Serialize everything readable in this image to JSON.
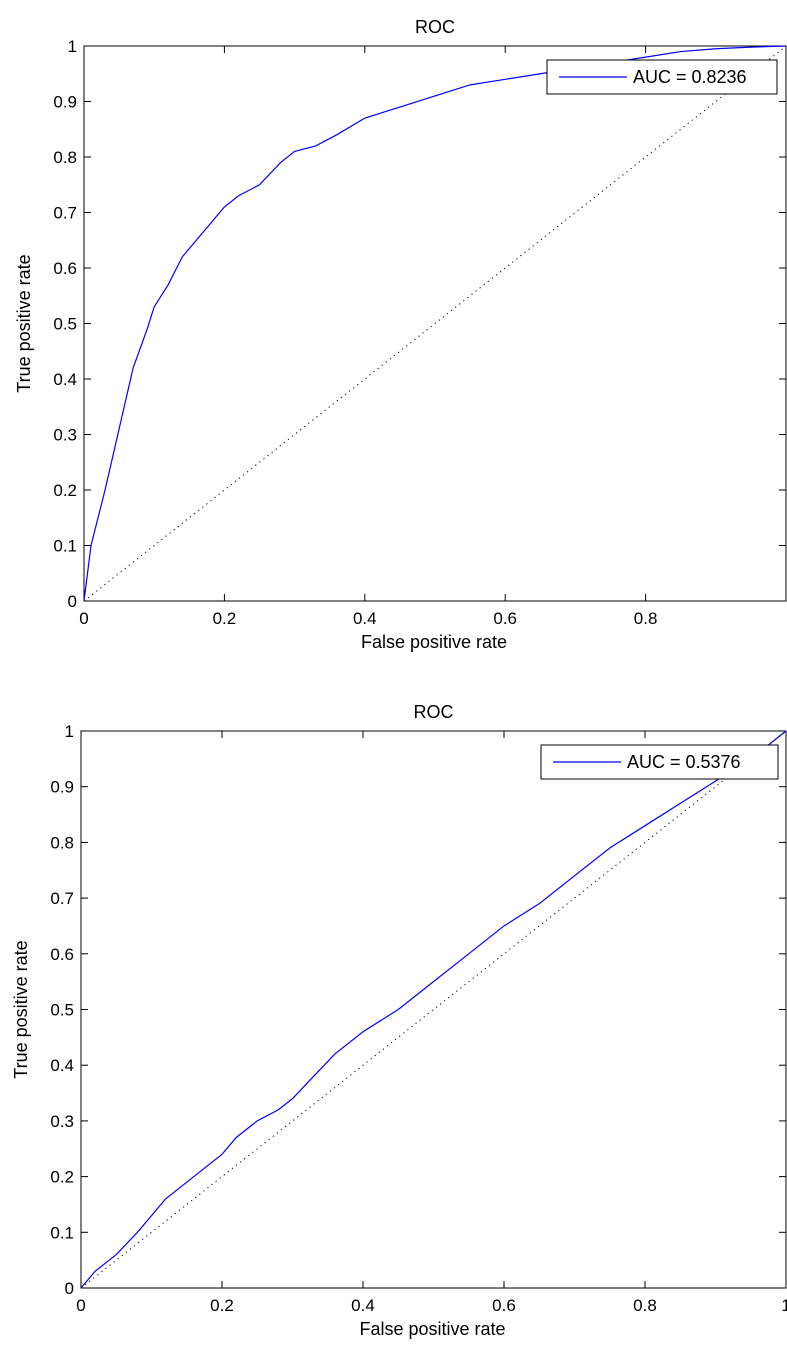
{
  "chart_data": [
    {
      "type": "line",
      "title": "ROC",
      "xlabel": "False positive rate",
      "ylabel": "True positive rate",
      "xlim": [
        0,
        1
      ],
      "ylim": [
        0,
        1
      ],
      "xticks": [
        "0",
        "0.2",
        "0.4",
        "0.6",
        "0.8"
      ],
      "yticks": [
        "0",
        "0.1",
        "0.2",
        "0.3",
        "0.4",
        "0.5",
        "0.6",
        "0.7",
        "0.8",
        "0.9",
        "1"
      ],
      "grid": false,
      "legend_position": "top-right",
      "series": [
        {
          "name": "AUC = 0.8236",
          "color": "#0000ff",
          "style": "solid",
          "x": [
            0,
            0.01,
            0.03,
            0.05,
            0.07,
            0.09,
            0.1,
            0.12,
            0.14,
            0.16,
            0.18,
            0.2,
            0.22,
            0.25,
            0.28,
            0.3,
            0.33,
            0.36,
            0.4,
            0.45,
            0.5,
            0.55,
            0.6,
            0.65,
            0.7,
            0.75,
            0.8,
            0.85,
            0.9,
            0.95,
            1.0
          ],
          "y": [
            0,
            0.1,
            0.2,
            0.31,
            0.42,
            0.49,
            0.53,
            0.57,
            0.62,
            0.65,
            0.68,
            0.71,
            0.73,
            0.75,
            0.79,
            0.81,
            0.82,
            0.84,
            0.87,
            0.89,
            0.91,
            0.93,
            0.94,
            0.95,
            0.96,
            0.97,
            0.98,
            0.99,
            0.995,
            0.998,
            1.0
          ]
        },
        {
          "color": "#000000",
          "style": "dotted",
          "x": [
            0,
            1
          ],
          "y": [
            0,
            1
          ]
        }
      ]
    },
    {
      "type": "line",
      "title": "ROC",
      "xlabel": "False positive rate",
      "ylabel": "True positive rate",
      "xlim": [
        0,
        1
      ],
      "ylim": [
        0,
        1
      ],
      "xticks": [
        "0",
        "0.2",
        "0.4",
        "0.6",
        "0.8",
        "1"
      ],
      "yticks": [
        "0",
        "0.1",
        "0.2",
        "0.3",
        "0.4",
        "0.5",
        "0.6",
        "0.7",
        "0.8",
        "0.9",
        "1"
      ],
      "grid": false,
      "legend_position": "top-right",
      "series": [
        {
          "name": "AUC = 0.5376",
          "color": "#0000ff",
          "style": "solid",
          "x": [
            0,
            0.02,
            0.05,
            0.08,
            0.1,
            0.12,
            0.15,
            0.18,
            0.2,
            0.22,
            0.25,
            0.28,
            0.3,
            0.33,
            0.36,
            0.4,
            0.45,
            0.5,
            0.55,
            0.6,
            0.65,
            0.7,
            0.75,
            0.8,
            0.85,
            0.9,
            0.95,
            1.0
          ],
          "y": [
            0,
            0.03,
            0.06,
            0.1,
            0.13,
            0.16,
            0.19,
            0.22,
            0.24,
            0.27,
            0.3,
            0.32,
            0.34,
            0.38,
            0.42,
            0.46,
            0.5,
            0.55,
            0.6,
            0.65,
            0.69,
            0.74,
            0.79,
            0.83,
            0.87,
            0.91,
            0.95,
            1.0
          ]
        },
        {
          "color": "#000000",
          "style": "dotted",
          "x": [
            0,
            1
          ],
          "y": [
            0,
            1
          ]
        }
      ]
    }
  ]
}
